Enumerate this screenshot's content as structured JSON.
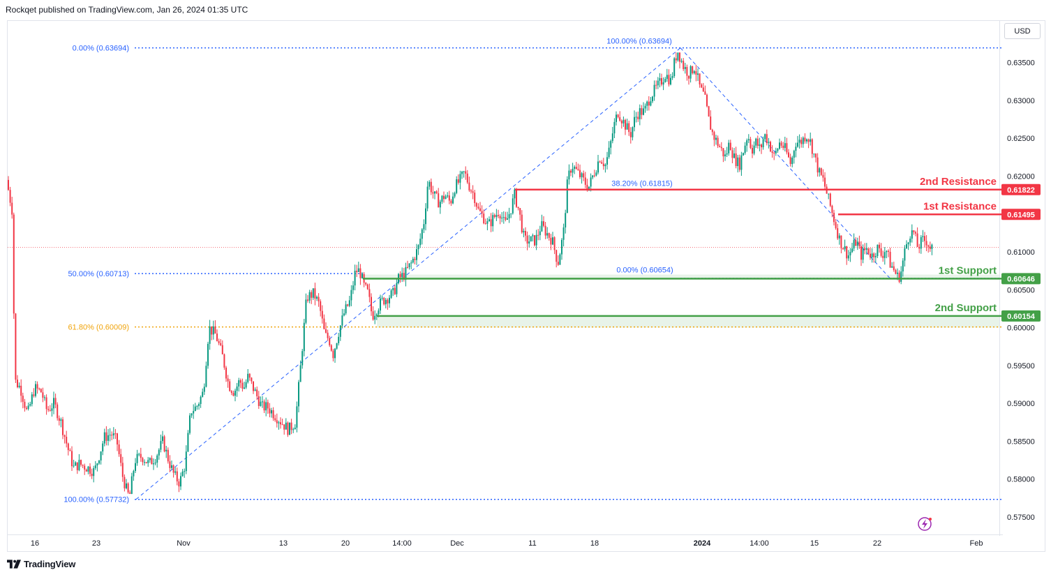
{
  "header": {
    "published": "Rockqet published on TradingView.com, Jan 26, 2024 01:35 UTC"
  },
  "toolbar": {
    "currency": "USD"
  },
  "footer": {
    "brand": "TradingView"
  },
  "colors": {
    "up": "#089981",
    "down": "#f23645",
    "resistance": "#f23645",
    "support": "#43a047",
    "fib": "#2962ff",
    "fib_gold": "#f0a30a"
  },
  "chart_data": {
    "type": "candlestick",
    "title": "",
    "ylim": [
      0.5725,
      0.6405
    ],
    "y_ticks": [
      0.635,
      0.63,
      0.625,
      0.62,
      0.615,
      0.61,
      0.605,
      0.6,
      0.595,
      0.59,
      0.585,
      0.58,
      0.575
    ],
    "y_tick_labels": [
      "0.63500",
      "0.63000",
      "0.62500",
      "0.62000",
      "0.61500",
      "0.61000",
      "0.60500",
      "0.60000",
      "0.59500",
      "0.59000",
      "0.58500",
      "0.58000",
      "0.57500"
    ],
    "x_tick_labels": [
      "16",
      "23",
      "Nov",
      "13",
      "20",
      "14:00",
      "Dec",
      "11",
      "18",
      "2024",
      "14:00",
      "15",
      "22",
      "Feb"
    ],
    "bold_x_tick": "2024",
    "last_price": 0.6106,
    "price_path": [
      [
        0,
        0.6195
      ],
      [
        8,
        0.6155
      ],
      [
        12,
        0.593
      ],
      [
        20,
        0.592
      ],
      [
        30,
        0.5885
      ],
      [
        40,
        0.592
      ],
      [
        50,
        0.5915
      ],
      [
        58,
        0.589
      ],
      [
        68,
        0.59
      ],
      [
        78,
        0.5875
      ],
      [
        88,
        0.584
      ],
      [
        96,
        0.5815
      ],
      [
        104,
        0.582
      ],
      [
        116,
        0.5815
      ],
      [
        126,
        0.581
      ],
      [
        140,
        0.5855
      ],
      [
        150,
        0.586
      ],
      [
        158,
        0.585
      ],
      [
        166,
        0.5805
      ],
      [
        172,
        0.5785
      ],
      [
        176,
        0.5775
      ],
      [
        184,
        0.5825
      ],
      [
        194,
        0.583
      ],
      [
        204,
        0.582
      ],
      [
        214,
        0.583
      ],
      [
        224,
        0.585
      ],
      [
        232,
        0.5825
      ],
      [
        240,
        0.5805
      ],
      [
        248,
        0.5795
      ],
      [
        256,
        0.582
      ],
      [
        264,
        0.589
      ],
      [
        272,
        0.5895
      ],
      [
        282,
        0.5915
      ],
      [
        290,
        0.6
      ],
      [
        300,
        0.599
      ],
      [
        310,
        0.596
      ],
      [
        318,
        0.5925
      ],
      [
        326,
        0.5915
      ],
      [
        334,
        0.593
      ],
      [
        340,
        0.592
      ],
      [
        346,
        0.5935
      ],
      [
        356,
        0.5915
      ],
      [
        366,
        0.5895
      ],
      [
        374,
        0.5895
      ],
      [
        384,
        0.5885
      ],
      [
        394,
        0.5875
      ],
      [
        404,
        0.5865
      ],
      [
        414,
        0.5875
      ],
      [
        420,
        0.5935
      ],
      [
        430,
        0.604
      ],
      [
        440,
        0.6045
      ],
      [
        448,
        0.603
      ],
      [
        456,
        0.599
      ],
      [
        462,
        0.5985
      ],
      [
        468,
        0.5965
      ],
      [
        476,
        0.5995
      ],
      [
        484,
        0.602
      ],
      [
        492,
        0.6035
      ],
      [
        500,
        0.6075
      ],
      [
        506,
        0.6075
      ],
      [
        512,
        0.6055
      ],
      [
        518,
        0.6045
      ],
      [
        524,
        0.6015
      ],
      [
        530,
        0.6025
      ],
      [
        538,
        0.6035
      ],
      [
        546,
        0.604
      ],
      [
        554,
        0.6045
      ],
      [
        562,
        0.6065
      ],
      [
        570,
        0.607
      ],
      [
        580,
        0.6085
      ],
      [
        590,
        0.6105
      ],
      [
        598,
        0.614
      ],
      [
        604,
        0.6195
      ],
      [
        612,
        0.6175
      ],
      [
        620,
        0.6165
      ],
      [
        628,
        0.6175
      ],
      [
        636,
        0.6165
      ],
      [
        642,
        0.6185
      ],
      [
        650,
        0.6195
      ],
      [
        656,
        0.6205
      ],
      [
        664,
        0.6185
      ],
      [
        670,
        0.6175
      ],
      [
        676,
        0.6155
      ],
      [
        684,
        0.6145
      ],
      [
        690,
        0.6135
      ],
      [
        698,
        0.6145
      ],
      [
        706,
        0.6155
      ],
      [
        714,
        0.6135
      ],
      [
        722,
        0.6155
      ],
      [
        728,
        0.6175
      ],
      [
        734,
        0.6155
      ],
      [
        742,
        0.6115
      ],
      [
        750,
        0.6115
      ],
      [
        758,
        0.6115
      ],
      [
        766,
        0.6135
      ],
      [
        774,
        0.6125
      ],
      [
        782,
        0.6115
      ],
      [
        790,
        0.6085
      ],
      [
        798,
        0.6125
      ],
      [
        804,
        0.6195
      ],
      [
        810,
        0.6215
      ],
      [
        818,
        0.6205
      ],
      [
        826,
        0.6195
      ],
      [
        834,
        0.6185
      ],
      [
        842,
        0.6205
      ],
      [
        850,
        0.6225
      ],
      [
        858,
        0.6215
      ],
      [
        864,
        0.6235
      ],
      [
        870,
        0.6265
      ],
      [
        876,
        0.6285
      ],
      [
        882,
        0.6275
      ],
      [
        888,
        0.6265
      ],
      [
        894,
        0.6255
      ],
      [
        900,
        0.6275
      ],
      [
        906,
        0.6285
      ],
      [
        914,
        0.6285
      ],
      [
        922,
        0.6305
      ],
      [
        930,
        0.6315
      ],
      [
        938,
        0.6325
      ],
      [
        944,
        0.6335
      ],
      [
        952,
        0.6325
      ],
      [
        958,
        0.6355
      ],
      [
        962,
        0.6365
      ],
      [
        970,
        0.6345
      ],
      [
        978,
        0.6335
      ],
      [
        986,
        0.6345
      ],
      [
        994,
        0.6315
      ],
      [
        1000,
        0.6305
      ],
      [
        1006,
        0.6275
      ],
      [
        1012,
        0.6255
      ],
      [
        1018,
        0.6245
      ],
      [
        1024,
        0.6235
      ],
      [
        1030,
        0.6225
      ],
      [
        1036,
        0.6245
      ],
      [
        1042,
        0.6225
      ],
      [
        1050,
        0.6215
      ],
      [
        1056,
        0.6235
      ],
      [
        1062,
        0.6255
      ],
      [
        1068,
        0.6235
      ],
      [
        1074,
        0.6245
      ],
      [
        1080,
        0.6235
      ],
      [
        1086,
        0.6255
      ],
      [
        1092,
        0.6245
      ],
      [
        1100,
        0.6225
      ],
      [
        1108,
        0.6245
      ],
      [
        1116,
        0.6235
      ],
      [
        1124,
        0.6215
      ],
      [
        1130,
        0.6245
      ],
      [
        1138,
        0.6245
      ],
      [
        1146,
        0.6255
      ],
      [
        1152,
        0.6245
      ],
      [
        1158,
        0.6225
      ],
      [
        1164,
        0.6205
      ],
      [
        1170,
        0.6195
      ],
      [
        1176,
        0.6175
      ],
      [
        1182,
        0.6155
      ],
      [
        1188,
        0.6135
      ],
      [
        1194,
        0.6115
      ],
      [
        1200,
        0.6105
      ],
      [
        1206,
        0.6095
      ],
      [
        1212,
        0.6105
      ],
      [
        1218,
        0.6115
      ],
      [
        1224,
        0.6095
      ],
      [
        1232,
        0.6105
      ],
      [
        1240,
        0.6095
      ],
      [
        1248,
        0.6105
      ],
      [
        1254,
        0.6095
      ],
      [
        1260,
        0.6105
      ],
      [
        1266,
        0.6085
      ],
      [
        1272,
        0.6075
      ],
      [
        1278,
        0.6065
      ],
      [
        1282,
        0.6075
      ],
      [
        1288,
        0.6105
      ],
      [
        1294,
        0.6125
      ],
      [
        1300,
        0.6125
      ],
      [
        1306,
        0.6105
      ],
      [
        1312,
        0.6115
      ],
      [
        1318,
        0.6115
      ],
      [
        1324,
        0.6105
      ]
    ],
    "levels": [
      {
        "name": "2nd Resistance",
        "value": "0.61822",
        "price": 0.61822,
        "type": "resistance"
      },
      {
        "name": "1st Resistance",
        "value": "0.61495",
        "price": 0.61495,
        "type": "resistance"
      },
      {
        "name": "1st Support",
        "value": "0.60646",
        "price": 0.60646,
        "type": "support"
      },
      {
        "name": "2nd Support",
        "value": "0.60154",
        "price": 0.60154,
        "type": "support"
      }
    ],
    "fib_labels": [
      {
        "text": "0.00% (0.63694)",
        "price": 0.63694
      },
      {
        "text": "50.00% (0.60713)",
        "price": 0.60713
      },
      {
        "text": "61.80% (0.60009)",
        "price": 0.60009
      },
      {
        "text": "100.00% (0.57732)",
        "price": 0.57732
      },
      {
        "text": "100.00% (0.63694)",
        "price": 0.63694
      },
      {
        "text": "38.20% (0.61815)",
        "price": 0.61815
      },
      {
        "text": "0.00% (0.60654)",
        "price": 0.60654
      }
    ]
  }
}
